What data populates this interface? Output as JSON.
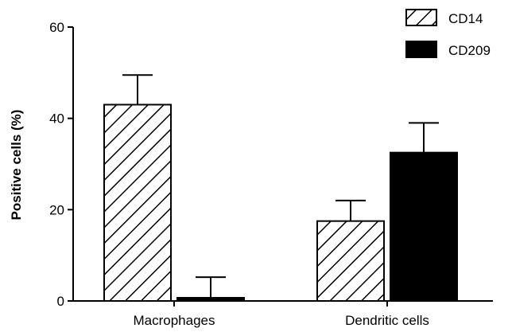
{
  "chart_data": {
    "type": "bar",
    "title": "",
    "xlabel": "",
    "ylabel": "Positive cells (%)",
    "ylim": [
      0,
      60
    ],
    "yticks": [
      0,
      20,
      40,
      60
    ],
    "categories": [
      "Macrophages",
      "Dendritic cells"
    ],
    "series": [
      {
        "name": "CD14",
        "values": [
          43,
          17.5
        ],
        "errors": [
          6.5,
          4.5
        ],
        "fill": "hatched"
      },
      {
        "name": "CD209",
        "values": [
          0.7,
          32.5
        ],
        "errors": [
          4.5,
          6.5
        ],
        "fill": "solid"
      }
    ],
    "legend_position": "top-right",
    "grid": false,
    "colors": {
      "bar": "#000000",
      "background": "#ffffff"
    }
  }
}
